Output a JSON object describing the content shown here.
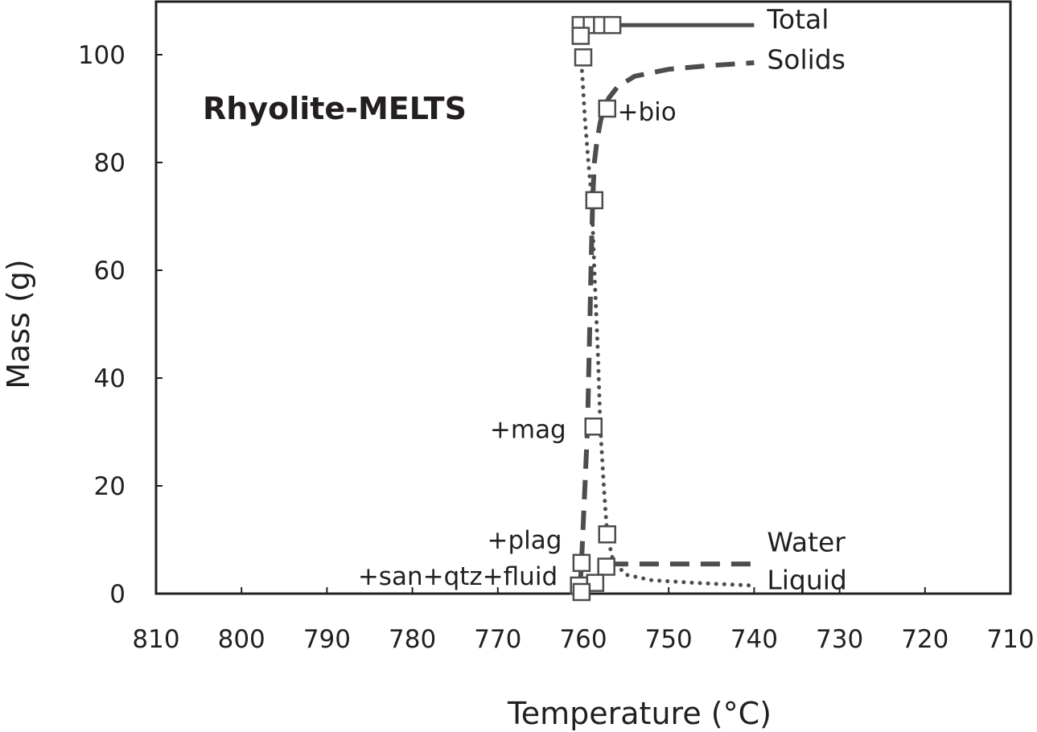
{
  "chart_data": {
    "type": "line",
    "title": "Rhyolite-MELTS",
    "xlabel": "Temperature (°C)",
    "ylabel": "Mass (g)",
    "xlim": [
      810,
      710
    ],
    "ylim": [
      0,
      105
    ],
    "x_reversed": true,
    "xticks": [
      810,
      800,
      790,
      780,
      770,
      760,
      750,
      740,
      730,
      720,
      710
    ],
    "yticks": [
      0,
      20,
      40,
      60,
      80,
      100
    ],
    "grid": false,
    "series": [
      {
        "name": "Total",
        "style": "solid",
        "color": "#4d4d4d",
        "x": [
          760.5,
          759.2,
          757.8,
          756.5,
          740
        ],
        "y": [
          105.5,
          105.5,
          105.5,
          105.5,
          105.5
        ]
      },
      {
        "name": "Solids",
        "style": "dashed",
        "color": "#4d4d4d",
        "x": [
          760.4,
          760.2,
          759.8,
          759.5,
          759.3,
          759.1,
          758.9,
          758.7,
          758.4,
          758.0,
          757.6,
          757.0,
          756.0,
          754.0,
          750.0,
          745.0,
          740.0
        ],
        "y": [
          0.5,
          6.0,
          20.0,
          31.0,
          45.0,
          60.0,
          73.0,
          80.0,
          84.0,
          87.5,
          90.0,
          92.0,
          94.0,
          96.0,
          97.3,
          98.0,
          98.5
        ]
      },
      {
        "name": "Liquid",
        "style": "dotted",
        "color": "#4d4d4d",
        "x": [
          760.3,
          760.1,
          759.8,
          759.4,
          759.0,
          758.7,
          758.3,
          758.0,
          757.6,
          757.2,
          756.5,
          755.0,
          752.0,
          747.0,
          740.0
        ],
        "y": [
          100.0,
          96.0,
          88.0,
          80.0,
          73.0,
          60.0,
          45.0,
          31.0,
          20.0,
          11.0,
          6.0,
          3.5,
          2.5,
          2.0,
          1.5
        ]
      },
      {
        "name": "Water",
        "style": "dashed",
        "color": "#4d4d4d",
        "x": [
          757.0,
          755.0,
          750.0,
          745.0,
          740.0
        ],
        "y": [
          5.5,
          5.5,
          5.5,
          5.5,
          5.5
        ]
      }
    ],
    "markers": [
      {
        "x": 760.3,
        "y": 105.5
      },
      {
        "x": 759.0,
        "y": 105.5
      },
      {
        "x": 757.8,
        "y": 105.5
      },
      {
        "x": 756.6,
        "y": 105.5
      },
      {
        "x": 760.3,
        "y": 103.5
      },
      {
        "x": 760.0,
        "y": 99.5
      },
      {
        "x": 757.2,
        "y": 90.0
      },
      {
        "x": 758.7,
        "y": 73.0
      },
      {
        "x": 758.8,
        "y": 31.0
      },
      {
        "x": 757.2,
        "y": 11.0
      },
      {
        "x": 760.2,
        "y": 5.7
      },
      {
        "x": 757.3,
        "y": 5.0
      },
      {
        "x": 758.6,
        "y": 2.0
      },
      {
        "x": 760.5,
        "y": 1.5
      },
      {
        "x": 760.2,
        "y": 0.3
      }
    ],
    "annotations": [
      {
        "text": "+bio",
        "x": 756.0,
        "y": 89.5,
        "anchor": "start"
      },
      {
        "text": "+mag",
        "x": 762.0,
        "y": 30.5,
        "anchor": "end"
      },
      {
        "text": "+plag",
        "x": 762.5,
        "y": 10.0,
        "anchor": "end"
      },
      {
        "text": "+san+qtz+fluid",
        "x": 763.0,
        "y": 3.3,
        "anchor": "end"
      }
    ],
    "series_labels": [
      {
        "text": "Total",
        "x": 738.5,
        "y": 106.5
      },
      {
        "text": "Solids",
        "x": 738.5,
        "y": 99.0
      },
      {
        "text": "Water",
        "x": 738.5,
        "y": 9.5
      },
      {
        "text": "Liquid",
        "x": 738.5,
        "y": 2.5
      }
    ]
  }
}
